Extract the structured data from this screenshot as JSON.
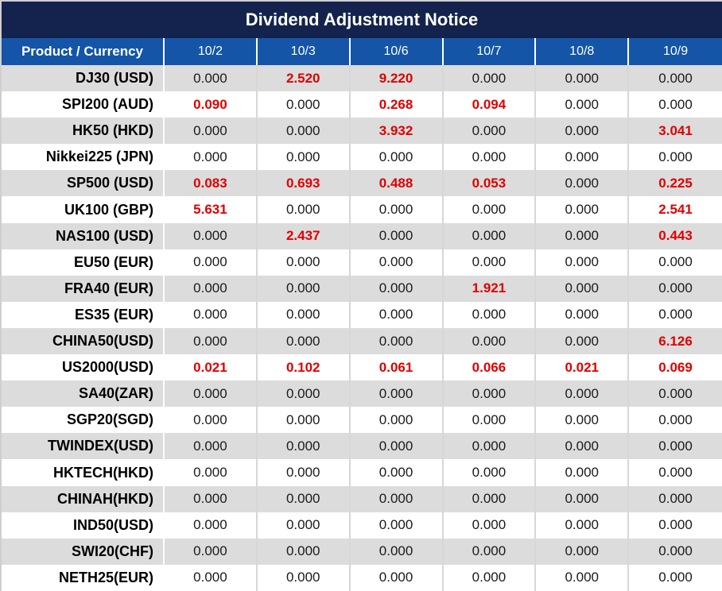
{
  "title": "Dividend Adjustment Notice",
  "columns": {
    "product": "Product / Currency",
    "dates": [
      "10/2",
      "10/3",
      "10/6",
      "10/7",
      "10/8",
      "10/9"
    ]
  },
  "rows": [
    {
      "product": "DJ30 (USD)",
      "values": [
        "0.000",
        "2.520",
        "9.220",
        "0.000",
        "0.000",
        "0.000"
      ]
    },
    {
      "product": "SPI200 (AUD)",
      "values": [
        "0.090",
        "0.000",
        "0.268",
        "0.094",
        "0.000",
        "0.000"
      ]
    },
    {
      "product": "HK50 (HKD)",
      "values": [
        "0.000",
        "0.000",
        "3.932",
        "0.000",
        "0.000",
        "3.041"
      ]
    },
    {
      "product": "Nikkei225 (JPN)",
      "values": [
        "0.000",
        "0.000",
        "0.000",
        "0.000",
        "0.000",
        "0.000"
      ]
    },
    {
      "product": "SP500 (USD)",
      "values": [
        "0.083",
        "0.693",
        "0.488",
        "0.053",
        "0.000",
        "0.225"
      ]
    },
    {
      "product": "UK100 (GBP)",
      "values": [
        "5.631",
        "0.000",
        "0.000",
        "0.000",
        "0.000",
        "2.541"
      ]
    },
    {
      "product": "NAS100 (USD)",
      "values": [
        "0.000",
        "2.437",
        "0.000",
        "0.000",
        "0.000",
        "0.443"
      ]
    },
    {
      "product": "EU50 (EUR)",
      "values": [
        "0.000",
        "0.000",
        "0.000",
        "0.000",
        "0.000",
        "0.000"
      ]
    },
    {
      "product": "FRA40 (EUR)",
      "values": [
        "0.000",
        "0.000",
        "0.000",
        "1.921",
        "0.000",
        "0.000"
      ]
    },
    {
      "product": "ES35 (EUR)",
      "values": [
        "0.000",
        "0.000",
        "0.000",
        "0.000",
        "0.000",
        "0.000"
      ]
    },
    {
      "product": "CHINA50(USD)",
      "values": [
        "0.000",
        "0.000",
        "0.000",
        "0.000",
        "0.000",
        "6.126"
      ]
    },
    {
      "product": "US2000(USD)",
      "values": [
        "0.021",
        "0.102",
        "0.061",
        "0.066",
        "0.021",
        "0.069"
      ]
    },
    {
      "product": "SA40(ZAR)",
      "values": [
        "0.000",
        "0.000",
        "0.000",
        "0.000",
        "0.000",
        "0.000"
      ]
    },
    {
      "product": "SGP20(SGD)",
      "values": [
        "0.000",
        "0.000",
        "0.000",
        "0.000",
        "0.000",
        "0.000"
      ]
    },
    {
      "product": "TWINDEX(USD)",
      "values": [
        "0.000",
        "0.000",
        "0.000",
        "0.000",
        "0.000",
        "0.000"
      ]
    },
    {
      "product": "HKTECH(HKD)",
      "values": [
        "0.000",
        "0.000",
        "0.000",
        "0.000",
        "0.000",
        "0.000"
      ]
    },
    {
      "product": "CHINAH(HKD)",
      "values": [
        "0.000",
        "0.000",
        "0.000",
        "0.000",
        "0.000",
        "0.000"
      ]
    },
    {
      "product": "IND50(USD)",
      "values": [
        "0.000",
        "0.000",
        "0.000",
        "0.000",
        "0.000",
        "0.000"
      ]
    },
    {
      "product": "SWI20(CHF)",
      "values": [
        "0.000",
        "0.000",
        "0.000",
        "0.000",
        "0.000",
        "0.000"
      ]
    },
    {
      "product": "NETH25(EUR)",
      "values": [
        "0.000",
        "0.000",
        "0.000",
        "0.000",
        "0.000",
        "0.000"
      ]
    }
  ],
  "colors": {
    "title_bg": "#13234D",
    "header_bg": "#1455A8",
    "header_text": "#FFFFFF",
    "row_bg": "#FFFFFF",
    "row_alt_bg": "#DCDCDC",
    "value_text": "#1A1A1A",
    "highlight_text": "#E00000",
    "separator": "#D7D7D7",
    "outer_border": "#CFCFCF"
  },
  "chart_data": {
    "type": "table",
    "title": "Dividend Adjustment Notice",
    "columns": [
      "Product / Currency",
      "10/2",
      "10/3",
      "10/6",
      "10/7",
      "10/8",
      "10/9"
    ],
    "rows": [
      [
        "DJ30 (USD)",
        0.0,
        2.52,
        9.22,
        0.0,
        0.0,
        0.0
      ],
      [
        "SPI200 (AUD)",
        0.09,
        0.0,
        0.268,
        0.094,
        0.0,
        0.0
      ],
      [
        "HK50 (HKD)",
        0.0,
        0.0,
        3.932,
        0.0,
        0.0,
        3.041
      ],
      [
        "Nikkei225 (JPN)",
        0.0,
        0.0,
        0.0,
        0.0,
        0.0,
        0.0
      ],
      [
        "SP500 (USD)",
        0.083,
        0.693,
        0.488,
        0.053,
        0.0,
        0.225
      ],
      [
        "UK100 (GBP)",
        5.631,
        0.0,
        0.0,
        0.0,
        0.0,
        2.541
      ],
      [
        "NAS100 (USD)",
        0.0,
        2.437,
        0.0,
        0.0,
        0.0,
        0.443
      ],
      [
        "EU50 (EUR)",
        0.0,
        0.0,
        0.0,
        0.0,
        0.0,
        0.0
      ],
      [
        "FRA40 (EUR)",
        0.0,
        0.0,
        0.0,
        1.921,
        0.0,
        0.0
      ],
      [
        "ES35 (EUR)",
        0.0,
        0.0,
        0.0,
        0.0,
        0.0,
        0.0
      ],
      [
        "CHINA50(USD)",
        0.0,
        0.0,
        0.0,
        0.0,
        0.0,
        6.126
      ],
      [
        "US2000(USD)",
        0.021,
        0.102,
        0.061,
        0.066,
        0.021,
        0.069
      ],
      [
        "SA40(ZAR)",
        0.0,
        0.0,
        0.0,
        0.0,
        0.0,
        0.0
      ],
      [
        "SGP20(SGD)",
        0.0,
        0.0,
        0.0,
        0.0,
        0.0,
        0.0
      ],
      [
        "TWINDEX(USD)",
        0.0,
        0.0,
        0.0,
        0.0,
        0.0,
        0.0
      ],
      [
        "HKTECH(HKD)",
        0.0,
        0.0,
        0.0,
        0.0,
        0.0,
        0.0
      ],
      [
        "CHINAH(HKD)",
        0.0,
        0.0,
        0.0,
        0.0,
        0.0,
        0.0
      ],
      [
        "IND50(USD)",
        0.0,
        0.0,
        0.0,
        0.0,
        0.0,
        0.0
      ],
      [
        "SWI20(CHF)",
        0.0,
        0.0,
        0.0,
        0.0,
        0.0,
        0.0
      ],
      [
        "NETH25(EUR)",
        0.0,
        0.0,
        0.0,
        0.0,
        0.0,
        0.0
      ]
    ],
    "notes": "Non-zero dividend adjustment values are rendered in red bold; zero values in black. Rows alternate grey/white starting with grey."
  }
}
